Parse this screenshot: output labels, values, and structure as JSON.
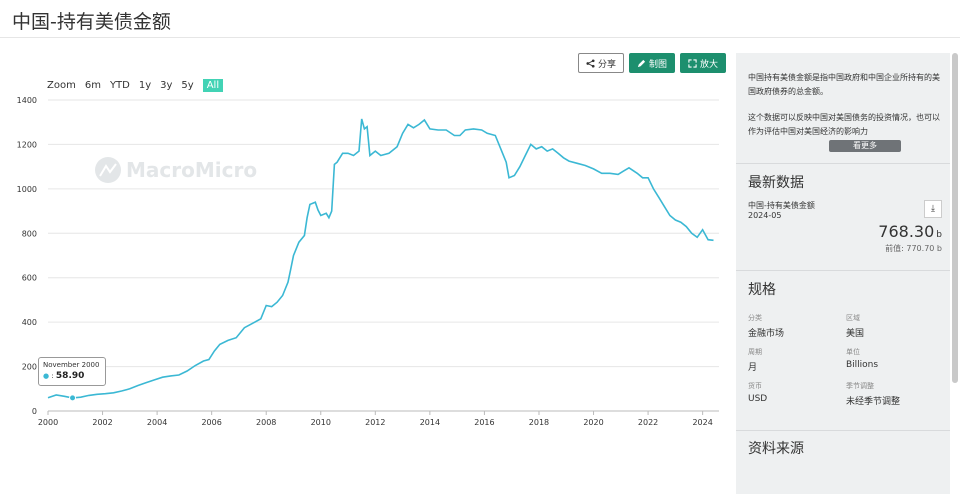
{
  "page": {
    "title": "中国-持有美债金额"
  },
  "toolbar": {
    "share": "分享",
    "make_chart": "制图",
    "enlarge": "放大"
  },
  "range": {
    "zoom_label": "Zoom",
    "options": [
      "6m",
      "YTD",
      "1y",
      "3y",
      "5y",
      "All"
    ],
    "active": "All"
  },
  "watermark": "MacroMicro",
  "tooltip": {
    "date": "November 2000",
    "value": "58.90"
  },
  "colors": {
    "line": "#3bb8d4",
    "accent": "#1d8f6e",
    "range_active": "#42d3b5"
  },
  "chart_data": {
    "type": "line",
    "title": "",
    "xlabel": "",
    "ylabel": "",
    "xlim": [
      2000,
      2024.6
    ],
    "ylim": [
      0,
      1400
    ],
    "x_ticks": [
      "2000",
      "2002",
      "2004",
      "2006",
      "2008",
      "2010",
      "2012",
      "2014",
      "2016",
      "2018",
      "2020",
      "2022",
      "2024"
    ],
    "y_ticks": [
      "0",
      "200",
      "400",
      "600",
      "800",
      "1000",
      "1200",
      "1400"
    ],
    "grid": true,
    "series": [
      {
        "points": [
          [
            2000.0,
            60
          ],
          [
            2000.3,
            72
          ],
          [
            2000.6,
            66
          ],
          [
            2000.9,
            58.9
          ],
          [
            2001.2,
            62
          ],
          [
            2001.5,
            70
          ],
          [
            2001.8,
            75
          ],
          [
            2002.1,
            78
          ],
          [
            2002.4,
            82
          ],
          [
            2002.7,
            90
          ],
          [
            2003.0,
            100
          ],
          [
            2003.3,
            115
          ],
          [
            2003.6,
            128
          ],
          [
            2003.9,
            140
          ],
          [
            2004.2,
            152
          ],
          [
            2004.5,
            158
          ],
          [
            2004.8,
            162
          ],
          [
            2005.1,
            180
          ],
          [
            2005.4,
            205
          ],
          [
            2005.7,
            225
          ],
          [
            2005.9,
            232
          ],
          [
            2006.1,
            270
          ],
          [
            2006.3,
            300
          ],
          [
            2006.6,
            318
          ],
          [
            2006.9,
            330
          ],
          [
            2007.2,
            375
          ],
          [
            2007.5,
            395
          ],
          [
            2007.8,
            415
          ],
          [
            2008.0,
            475
          ],
          [
            2008.2,
            470
          ],
          [
            2008.4,
            490
          ],
          [
            2008.6,
            520
          ],
          [
            2008.8,
            580
          ],
          [
            2008.9,
            640
          ],
          [
            2009.0,
            700
          ],
          [
            2009.2,
            760
          ],
          [
            2009.4,
            790
          ],
          [
            2009.5,
            870
          ],
          [
            2009.6,
            930
          ],
          [
            2009.8,
            940
          ],
          [
            2009.9,
            905
          ],
          [
            2010.0,
            880
          ],
          [
            2010.2,
            890
          ],
          [
            2010.3,
            870
          ],
          [
            2010.4,
            900
          ],
          [
            2010.5,
            1110
          ],
          [
            2010.6,
            1120
          ],
          [
            2010.8,
            1160
          ],
          [
            2011.0,
            1160
          ],
          [
            2011.2,
            1150
          ],
          [
            2011.4,
            1170
          ],
          [
            2011.5,
            1315
          ],
          [
            2011.6,
            1270
          ],
          [
            2011.7,
            1280
          ],
          [
            2011.8,
            1150
          ],
          [
            2012.0,
            1170
          ],
          [
            2012.2,
            1150
          ],
          [
            2012.5,
            1160
          ],
          [
            2012.8,
            1190
          ],
          [
            2013.0,
            1250
          ],
          [
            2013.2,
            1290
          ],
          [
            2013.4,
            1275
          ],
          [
            2013.6,
            1290
          ],
          [
            2013.8,
            1310
          ],
          [
            2014.0,
            1270
          ],
          [
            2014.3,
            1265
          ],
          [
            2014.6,
            1265
          ],
          [
            2014.9,
            1240
          ],
          [
            2015.1,
            1240
          ],
          [
            2015.3,
            1265
          ],
          [
            2015.6,
            1270
          ],
          [
            2015.9,
            1265
          ],
          [
            2016.1,
            1250
          ],
          [
            2016.4,
            1240
          ],
          [
            2016.6,
            1180
          ],
          [
            2016.8,
            1120
          ],
          [
            2016.9,
            1050
          ],
          [
            2017.1,
            1060
          ],
          [
            2017.3,
            1100
          ],
          [
            2017.5,
            1150
          ],
          [
            2017.7,
            1200
          ],
          [
            2017.9,
            1180
          ],
          [
            2018.1,
            1190
          ],
          [
            2018.3,
            1170
          ],
          [
            2018.5,
            1180
          ],
          [
            2018.7,
            1160
          ],
          [
            2018.9,
            1140
          ],
          [
            2019.1,
            1125
          ],
          [
            2019.4,
            1115
          ],
          [
            2019.7,
            1105
          ],
          [
            2020.0,
            1090
          ],
          [
            2020.3,
            1070
          ],
          [
            2020.6,
            1070
          ],
          [
            2020.9,
            1065
          ],
          [
            2021.1,
            1080
          ],
          [
            2021.3,
            1095
          ],
          [
            2021.6,
            1070
          ],
          [
            2021.8,
            1050
          ],
          [
            2022.0,
            1050
          ],
          [
            2022.2,
            1000
          ],
          [
            2022.4,
            960
          ],
          [
            2022.6,
            920
          ],
          [
            2022.8,
            880
          ],
          [
            2023.0,
            860
          ],
          [
            2023.2,
            850
          ],
          [
            2023.4,
            830
          ],
          [
            2023.6,
            800
          ],
          [
            2023.8,
            782
          ],
          [
            2024.0,
            816
          ],
          [
            2024.2,
            771
          ],
          [
            2024.4,
            768.3
          ]
        ]
      }
    ]
  },
  "sidebar": {
    "description_1": "中国持有美债金额是指中国政府和中国企业所持有的美国政府债券的总金额。",
    "description_2": "这个数据可以反映中国对美国债务的投资情况，也可以作为评估中国对美国经济的影响力",
    "more": "看更多",
    "latest_title": "最新数据",
    "latest_name": "中国-持有美债金额",
    "latest_date": "2024-05",
    "latest_value": "768.30",
    "latest_unit": "b",
    "prev_value": "前值: 770.70 b",
    "spec_title": "规格",
    "spec": {
      "category_label": "分类",
      "category": "金融市场",
      "region_label": "区域",
      "region": "美国",
      "period_label": "周期",
      "period": "月",
      "unit_label": "单位",
      "unit": "Billions",
      "currency_label": "货币",
      "currency": "USD",
      "seasonal_label": "季节调整",
      "seasonal": "未经季节调整"
    },
    "source_title": "资料来源"
  }
}
